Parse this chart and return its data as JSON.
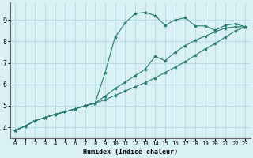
{
  "xlabel": "Humidex (Indice chaleur)",
  "bg_color": "#d9f0f5",
  "grid_color": "#b8dde6",
  "line_color": "#2a7a6e",
  "xlim": [
    -0.5,
    23.5
  ],
  "ylim": [
    3.5,
    9.8
  ],
  "xticks": [
    0,
    1,
    2,
    3,
    4,
    5,
    6,
    7,
    8,
    9,
    10,
    11,
    12,
    13,
    14,
    15,
    16,
    17,
    18,
    19,
    20,
    21,
    22,
    23
  ],
  "yticks": [
    4,
    5,
    6,
    7,
    8,
    9
  ],
  "line1_x": [
    0,
    1,
    2,
    3,
    4,
    5,
    6,
    7,
    8,
    9,
    10,
    11,
    12,
    13,
    14,
    15,
    16,
    17,
    18,
    19,
    20,
    21,
    22,
    23
  ],
  "line1_y": [
    3.85,
    4.05,
    4.3,
    4.45,
    4.6,
    4.72,
    4.85,
    5.0,
    5.12,
    5.28,
    5.48,
    5.68,
    5.88,
    6.08,
    6.3,
    6.55,
    6.8,
    7.05,
    7.35,
    7.65,
    7.9,
    8.2,
    8.48,
    8.68
  ],
  "line2_x": [
    0,
    1,
    2,
    3,
    4,
    5,
    6,
    7,
    8,
    9,
    10,
    11,
    12,
    13,
    14,
    15,
    16,
    17,
    18,
    19,
    20,
    21,
    22,
    23
  ],
  "line2_y": [
    3.85,
    4.05,
    4.3,
    4.45,
    4.6,
    4.72,
    4.85,
    5.0,
    5.12,
    5.45,
    5.8,
    6.1,
    6.4,
    6.7,
    7.3,
    7.1,
    7.5,
    7.8,
    8.05,
    8.25,
    8.45,
    8.62,
    8.68,
    8.68
  ],
  "line3_x": [
    0,
    1,
    2,
    3,
    4,
    5,
    6,
    7,
    8,
    9,
    10,
    11,
    12,
    13,
    14,
    15,
    16,
    17,
    18,
    19,
    20,
    21,
    22,
    23
  ],
  "line3_y": [
    3.85,
    4.05,
    4.3,
    4.45,
    4.6,
    4.72,
    4.85,
    5.0,
    5.12,
    6.55,
    8.2,
    8.85,
    9.3,
    9.35,
    9.2,
    8.75,
    9.0,
    9.1,
    8.72,
    8.72,
    8.52,
    8.75,
    8.82,
    8.68
  ]
}
